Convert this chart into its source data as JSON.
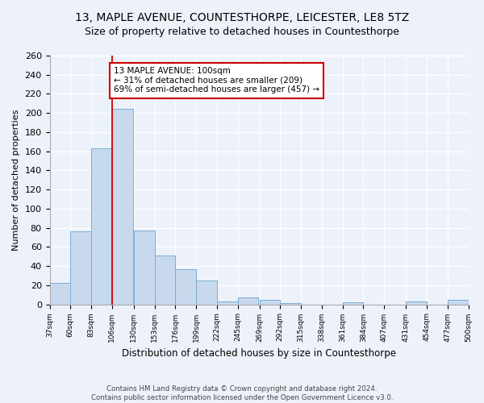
{
  "title": "13, MAPLE AVENUE, COUNTESTHORPE, LEICESTER, LE8 5TZ",
  "subtitle": "Size of property relative to detached houses in Countesthorpe",
  "xlabel": "Distribution of detached houses by size in Countesthorpe",
  "ylabel": "Number of detached properties",
  "bins": [
    37,
    60,
    83,
    106,
    130,
    153,
    176,
    199,
    222,
    245,
    269,
    292,
    315,
    338,
    361,
    384,
    407,
    431,
    454,
    477,
    500
  ],
  "counts": [
    22,
    76,
    163,
    204,
    77,
    51,
    37,
    25,
    3,
    7,
    5,
    1,
    0,
    0,
    2,
    0,
    0,
    3,
    0,
    5
  ],
  "bar_color": "#c8d9ee",
  "bar_edge_color": "#7aadd4",
  "vline_x": 106,
  "vline_color": "#cc0000",
  "annotation_line1": "13 MAPLE AVENUE: 100sqm",
  "annotation_line2": "← 31% of detached houses are smaller (209)",
  "annotation_line3": "69% of semi-detached houses are larger (457) →",
  "annotation_box_edgecolor": "#cc0000",
  "annotation_box_facecolor": "white",
  "ylim": [
    0,
    260
  ],
  "yticks": [
    0,
    20,
    40,
    60,
    80,
    100,
    120,
    140,
    160,
    180,
    200,
    220,
    240,
    260
  ],
  "tick_labels": [
    "37sqm",
    "60sqm",
    "83sqm",
    "106sqm",
    "130sqm",
    "153sqm",
    "176sqm",
    "199sqm",
    "222sqm",
    "245sqm",
    "269sqm",
    "292sqm",
    "315sqm",
    "338sqm",
    "361sqm",
    "384sqm",
    "407sqm",
    "431sqm",
    "454sqm",
    "477sqm",
    "500sqm"
  ],
  "footer_text": "Contains HM Land Registry data © Crown copyright and database right 2024.\nContains public sector information licensed under the Open Government Licence v3.0.",
  "bg_color": "#edf2fa",
  "plot_bg_color": "#edf2fa",
  "title_fontsize": 10,
  "subtitle_fontsize": 9
}
